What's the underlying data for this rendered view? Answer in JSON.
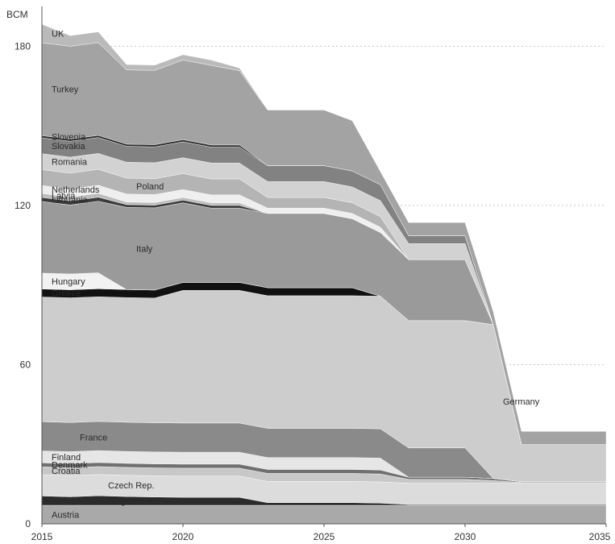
{
  "chart_data": {
    "type": "area",
    "stacked": true,
    "title": "",
    "unit_label": "BCM",
    "xlabel": "",
    "ylabel": "",
    "x": [
      2015,
      2016,
      2017,
      2018,
      2019,
      2020,
      2021,
      2022,
      2023,
      2024,
      2025,
      2026,
      2027,
      2028,
      2029,
      2030,
      2031,
      2032,
      2033,
      2034,
      2035
    ],
    "xlim": [
      2015,
      2035
    ],
    "ylim": [
      0,
      195
    ],
    "x_ticks": [
      "2015",
      "2020",
      "2025",
      "2030",
      "2035"
    ],
    "y_ticks": [
      "0",
      "60",
      "120",
      "180"
    ],
    "grid": "horizontal dotted",
    "legend": "labels inside bands",
    "series": [
      {
        "name": "Austria",
        "color": "#a9a9a9",
        "values": [
          7,
          7,
          7,
          7,
          7,
          7,
          7,
          7,
          7,
          7,
          7,
          7,
          7,
          7,
          7,
          7,
          7,
          7,
          7,
          7,
          7
        ]
      },
      {
        "name": "Bulgaria",
        "color": "#2b2b2b",
        "values": [
          3.5,
          3.2,
          3.6,
          3.3,
          3.1,
          3.0,
          3.0,
          3.0,
          1.0,
          1.0,
          1.0,
          1.0,
          0.8,
          0.3,
          0.3,
          0.3,
          0.3,
          0.3,
          0.3,
          0.3,
          0.3
        ]
      },
      {
        "name": "Czech Rep.",
        "color": "#dcdcdc",
        "values": [
          8,
          8,
          8,
          8,
          8,
          8,
          8,
          8,
          8,
          8,
          8,
          8,
          8,
          8,
          8,
          8,
          8,
          8,
          8,
          8,
          8
        ]
      },
      {
        "name": "Croatia",
        "color": "#c8c8c8",
        "values": [
          3,
          3,
          3,
          3,
          3,
          3,
          3,
          3,
          3,
          3,
          3,
          3,
          3,
          1.5,
          1.5,
          1.5,
          1.0,
          0.3,
          0.3,
          0.3,
          0.3
        ]
      },
      {
        "name": "Denmark",
        "color": "#707070",
        "values": [
          1.5,
          1.5,
          1.5,
          1.5,
          1.5,
          1.5,
          1.5,
          1.5,
          1.5,
          1.5,
          1.5,
          1.5,
          1.5,
          0.8,
          0.8,
          0.8,
          0.8,
          0.3,
          0.3,
          0.3,
          0.3
        ]
      },
      {
        "name": "Finland",
        "color": "#e6e6e6",
        "values": [
          4.5,
          4.5,
          4.5,
          4.5,
          4.5,
          4.5,
          4.5,
          4.5,
          4.5,
          4.5,
          4.5,
          4.5,
          4.5,
          0,
          0,
          0,
          0,
          0,
          0,
          0,
          0
        ]
      },
      {
        "name": "France",
        "color": "#8a8a8a",
        "values": [
          11,
          11,
          11,
          11,
          11,
          11,
          11,
          11,
          11,
          11,
          11,
          11,
          11,
          11,
          11,
          11,
          0,
          0,
          0,
          0,
          0
        ]
      },
      {
        "name": "Germany",
        "color": "#cdcdcd",
        "values": [
          47,
          47,
          47,
          47,
          47,
          50,
          50,
          50,
          50,
          50,
          50,
          50,
          50,
          48,
          48,
          48,
          58,
          14,
          14,
          14,
          14
        ]
      },
      {
        "name": "Greece",
        "color": "#111111",
        "values": [
          3,
          3,
          3,
          3,
          3,
          3,
          3,
          3,
          3,
          3,
          3,
          3,
          0,
          0,
          0,
          0,
          0,
          0,
          0,
          0,
          0
        ]
      },
      {
        "name": "Hungary",
        "color": "#f2f2f2",
        "values": [
          6,
          6,
          6,
          0,
          0,
          0,
          0,
          0,
          0,
          0,
          0,
          0,
          0,
          0,
          0,
          0,
          0,
          0,
          0,
          0,
          0
        ]
      },
      {
        "name": "Italy",
        "color": "#9a9a9a",
        "values": [
          27,
          26,
          27,
          31,
          31,
          30,
          28,
          28,
          28,
          28,
          28,
          26,
          24,
          23,
          23,
          23,
          0,
          0,
          0,
          0,
          0
        ]
      },
      {
        "name": "Lithuania",
        "color": "#3c3c3c",
        "values": [
          1.5,
          1.5,
          1.5,
          1.0,
          1.0,
          1.0,
          1.0,
          1.0,
          0,
          0,
          0,
          0,
          0,
          0,
          0,
          0,
          0,
          0,
          0,
          0,
          0
        ]
      },
      {
        "name": "Latvia",
        "color": "#bdbdbd",
        "values": [
          1.5,
          1.5,
          1.5,
          1.0,
          1.0,
          1.0,
          1.0,
          1.0,
          0,
          0,
          0,
          0,
          0,
          0,
          0,
          0,
          0,
          0,
          0,
          0,
          0
        ]
      },
      {
        "name": "Netherlands",
        "color": "#efefef",
        "values": [
          3,
          3,
          3,
          3,
          3,
          3,
          3,
          3,
          2,
          2,
          2,
          2,
          2,
          0,
          0,
          0,
          0,
          0,
          0,
          0,
          0
        ]
      },
      {
        "name": "Poland",
        "color": "#b4b4b4",
        "values": [
          6,
          6,
          6,
          6,
          6,
          6,
          6,
          6,
          4,
          4,
          4,
          4,
          4,
          0,
          0,
          0,
          0,
          0,
          0,
          0,
          0
        ]
      },
      {
        "name": "Romania",
        "color": "#d2d2d2",
        "values": [
          6,
          6,
          6,
          6,
          6,
          6,
          6,
          6,
          6,
          6,
          6,
          6,
          6,
          6,
          6,
          6,
          0,
          0,
          0,
          0,
          0
        ]
      },
      {
        "name": "Slovakia",
        "color": "#828282",
        "values": [
          6,
          6,
          6,
          6,
          6,
          6,
          6,
          6,
          6,
          6,
          6,
          6,
          6,
          3,
          3,
          3,
          0,
          0,
          0,
          0,
          0
        ]
      },
      {
        "name": "Slovenia",
        "color": "#2e2e2e",
        "values": [
          0.8,
          0.8,
          0.8,
          0.8,
          0.8,
          0.8,
          0.8,
          0.8,
          0,
          0,
          0,
          0,
          0,
          0,
          0,
          0,
          0,
          0,
          0,
          0,
          0
        ]
      },
      {
        "name": "Turkey",
        "color": "#a3a3a3",
        "values": [
          35,
          35,
          35,
          28,
          28,
          30,
          30,
          28,
          21,
          21,
          21,
          19,
          5,
          5,
          5,
          5,
          5,
          5,
          5,
          5,
          5
        ]
      },
      {
        "name": "UK",
        "color": "#bababa",
        "values": [
          7,
          4,
          4,
          2,
          2,
          2,
          2,
          1,
          0,
          0,
          0,
          0,
          0,
          0,
          0,
          0,
          0,
          0,
          0,
          0,
          0
        ]
      }
    ]
  }
}
